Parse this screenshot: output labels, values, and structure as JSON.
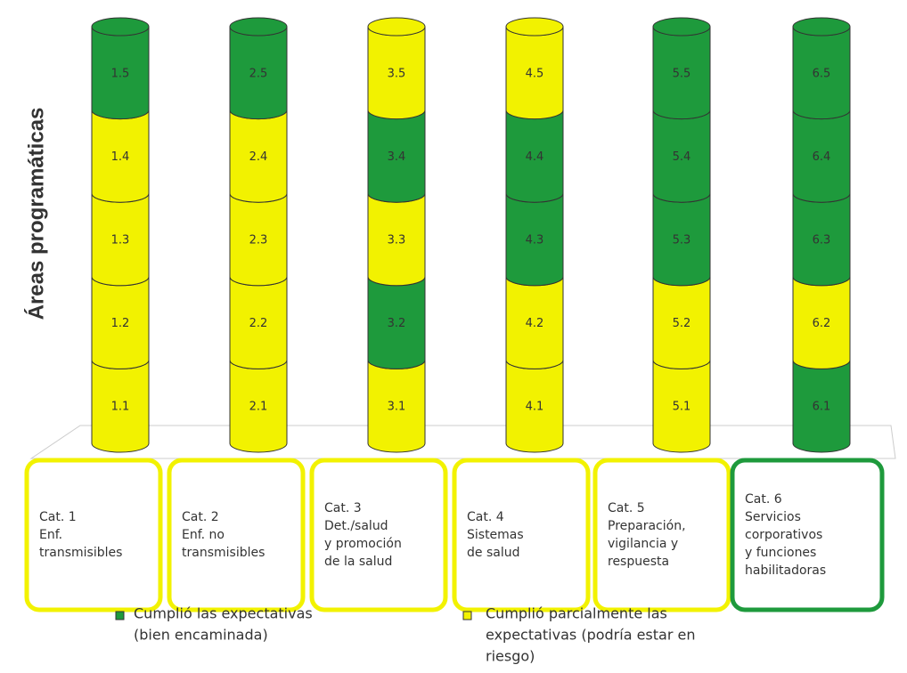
{
  "y_axis_label": "Áreas programáticas",
  "colors": {
    "met": "#1e9a3c",
    "partial": "#f2f200"
  },
  "columns": [
    {
      "segments": [
        {
          "label": "1.1",
          "status": "partial"
        },
        {
          "label": "1.2",
          "status": "partial"
        },
        {
          "label": "1.3",
          "status": "partial"
        },
        {
          "label": "1.4",
          "status": "partial"
        },
        {
          "label": "1.5",
          "status": "met"
        }
      ],
      "category": [
        "Cat. 1",
        "Enf.",
        "transmisibles"
      ],
      "status": "partial"
    },
    {
      "segments": [
        {
          "label": "2.1",
          "status": "partial"
        },
        {
          "label": "2.2",
          "status": "partial"
        },
        {
          "label": "2.3",
          "status": "partial"
        },
        {
          "label": "2.4",
          "status": "partial"
        },
        {
          "label": "2.5",
          "status": "met"
        }
      ],
      "category": [
        "Cat. 2",
        "Enf. no",
        "transmisibles"
      ],
      "status": "partial"
    },
    {
      "segments": [
        {
          "label": "3.1",
          "status": "partial"
        },
        {
          "label": "3.2",
          "status": "met"
        },
        {
          "label": "3.3",
          "status": "partial"
        },
        {
          "label": "3.4",
          "status": "met"
        },
        {
          "label": "3.5",
          "status": "partial"
        }
      ],
      "category": [
        "Cat. 3",
        "Det./salud",
        "y promoción",
        "de la salud"
      ],
      "status": "partial"
    },
    {
      "segments": [
        {
          "label": "4.1",
          "status": "partial"
        },
        {
          "label": "4.2",
          "status": "partial"
        },
        {
          "label": "4.3",
          "status": "met"
        },
        {
          "label": "4.4",
          "status": "met"
        },
        {
          "label": "4.5",
          "status": "partial"
        }
      ],
      "category": [
        "Cat. 4",
        "Sistemas",
        "de salud"
      ],
      "status": "partial"
    },
    {
      "segments": [
        {
          "label": "5.1",
          "status": "partial"
        },
        {
          "label": "5.2",
          "status": "partial"
        },
        {
          "label": "5.3",
          "status": "met"
        },
        {
          "label": "5.4",
          "status": "met"
        },
        {
          "label": "5.5",
          "status": "met"
        }
      ],
      "category": [
        "Cat. 5",
        "Preparación,",
        "vigilancia y",
        "respuesta"
      ],
      "status": "partial"
    },
    {
      "segments": [
        {
          "label": "6.1",
          "status": "met"
        },
        {
          "label": "6.2",
          "status": "partial"
        },
        {
          "label": "6.3",
          "status": "met"
        },
        {
          "label": "6.4",
          "status": "met"
        },
        {
          "label": "6.5",
          "status": "met"
        }
      ],
      "category": [
        "Cat. 6",
        "Servicios",
        "corporativos",
        "y funciones",
        "habilitadoras"
      ],
      "status": "met"
    }
  ],
  "legend": [
    {
      "status": "met",
      "lines": [
        "Cumplió las expectativas",
        "(bien encaminada)"
      ]
    },
    {
      "status": "partial",
      "lines": [
        "Cumplió parcialmente las",
        "expectativas (podría estar en",
        "riesgo)"
      ]
    }
  ]
}
